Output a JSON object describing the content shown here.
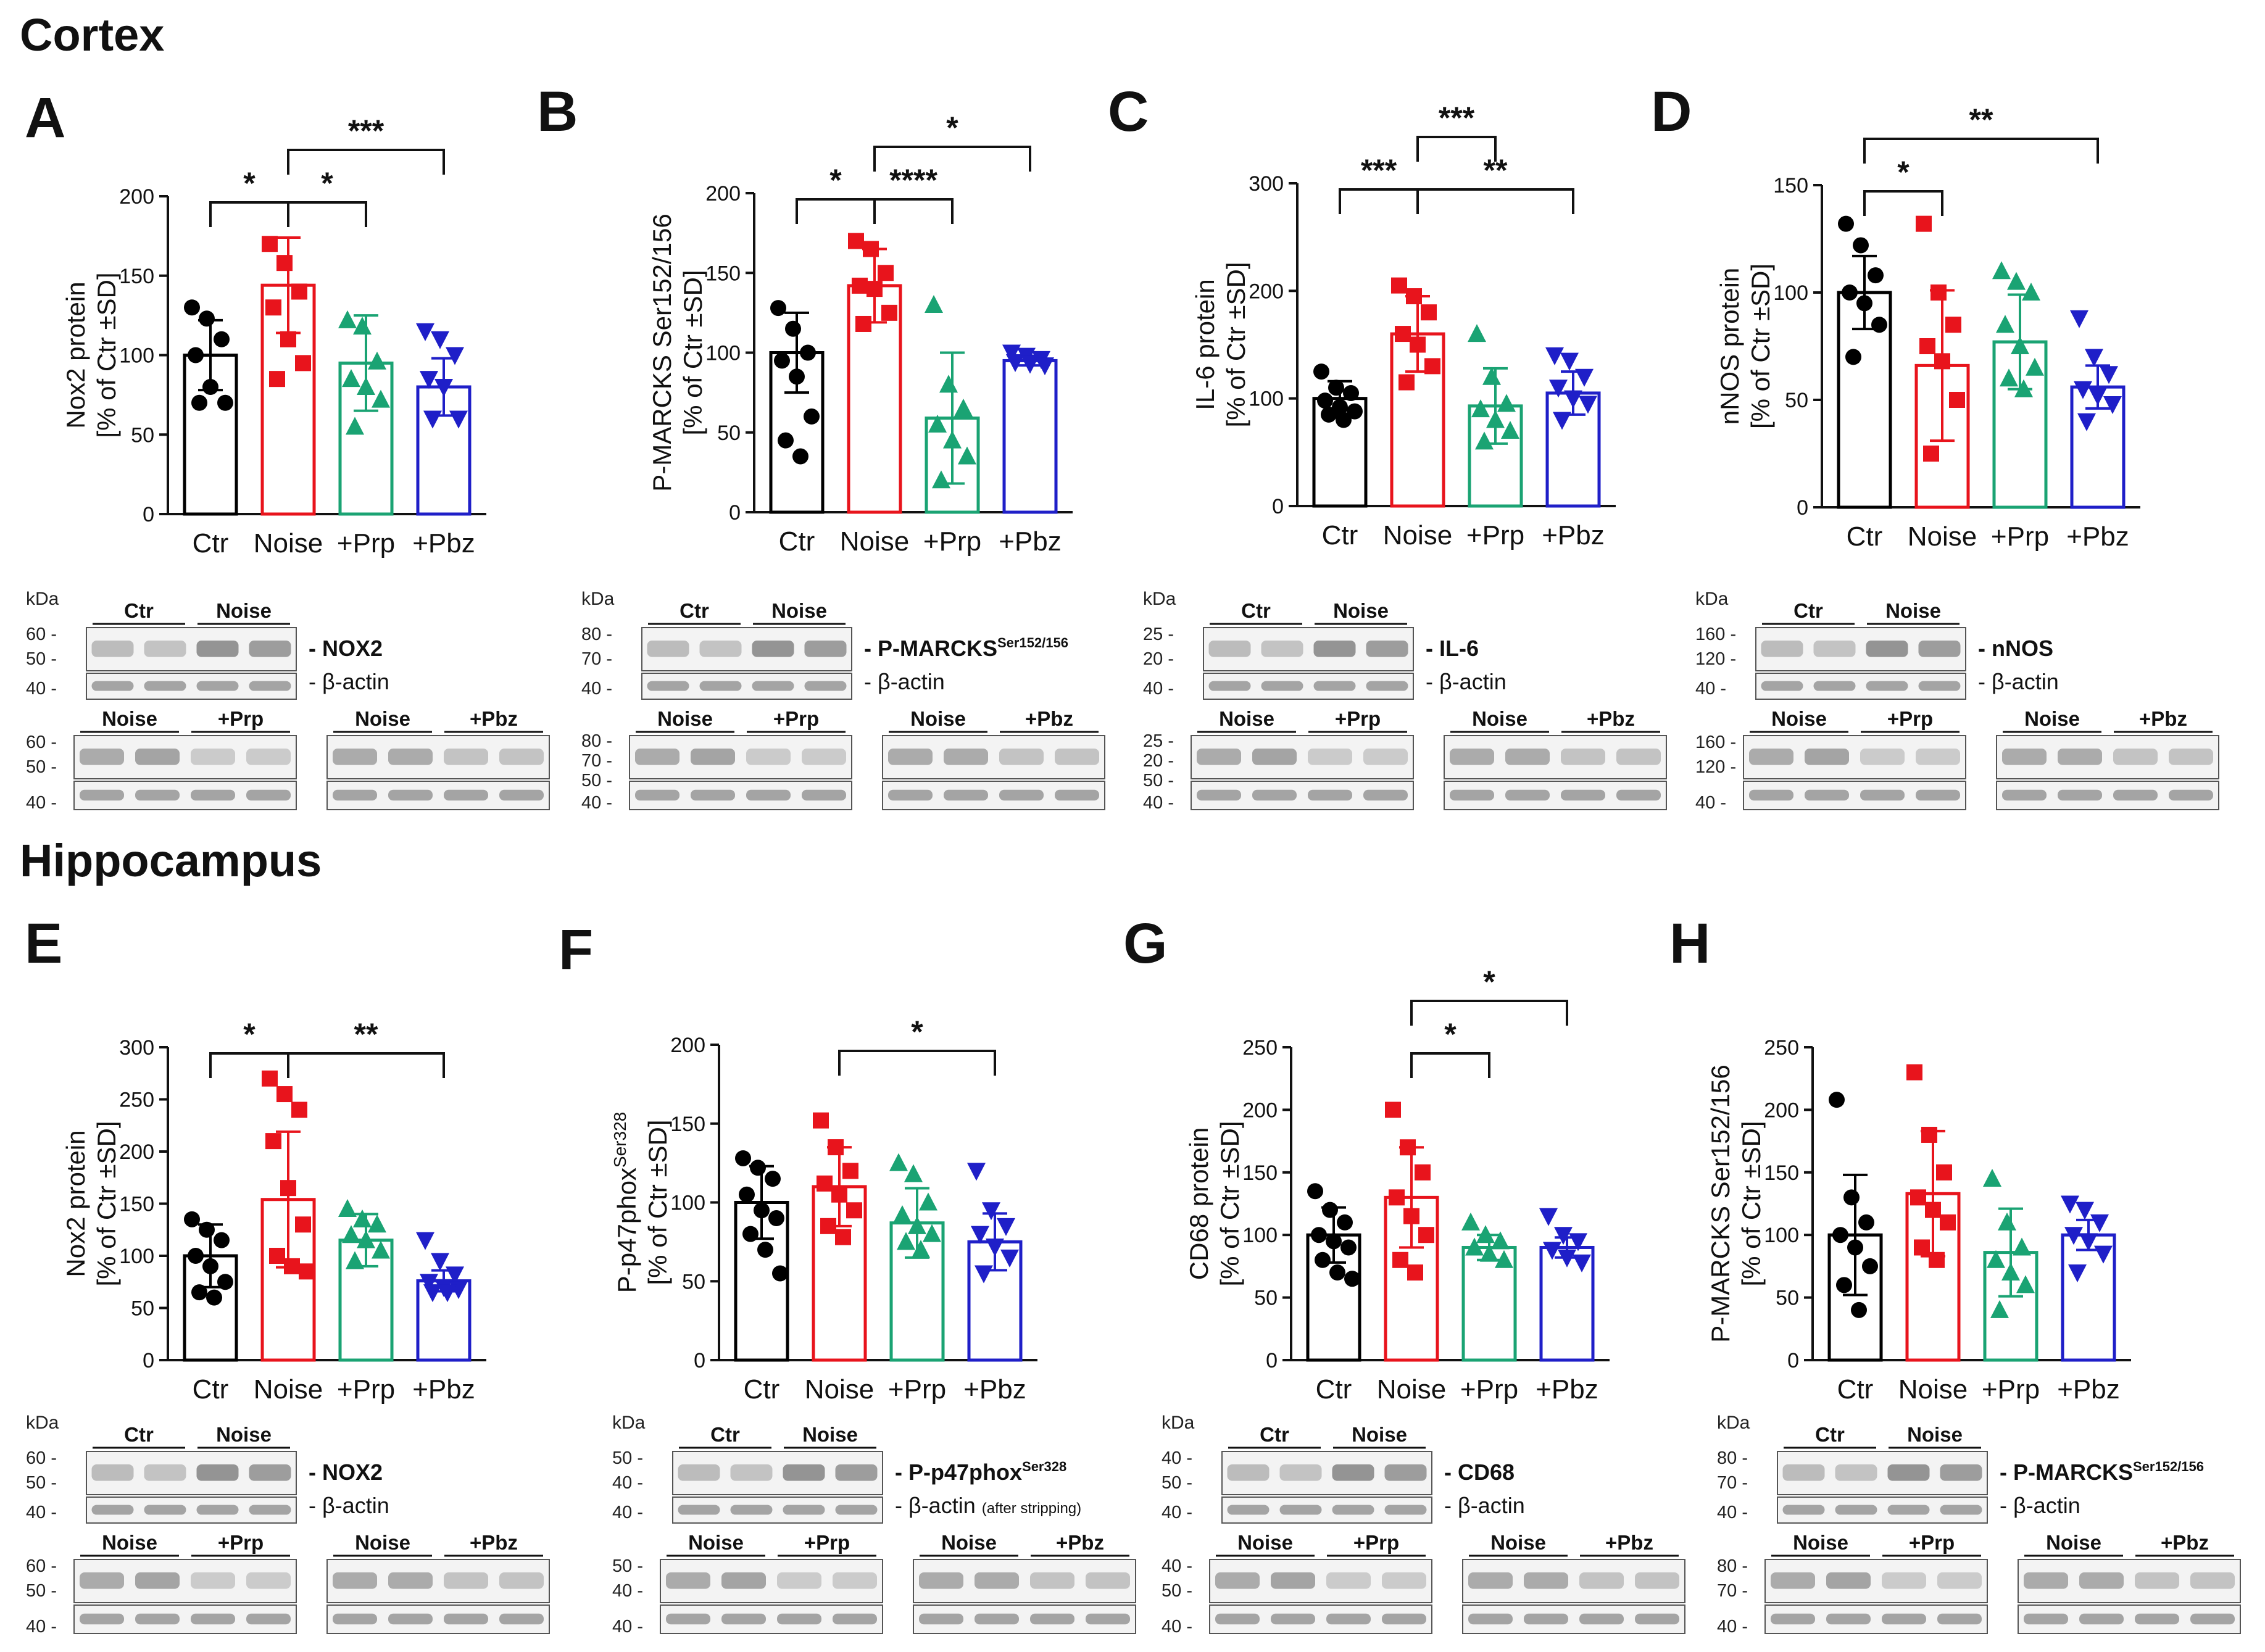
{
  "sections": {
    "top": "Cortex",
    "bottom": "Hippocampus"
  },
  "groups": [
    "Ctr",
    "Noise",
    "+Prp",
    "+Pbz"
  ],
  "colors": {
    "Ctr": "#000000",
    "Noise": "#e8141c",
    "+Prp": "#1aa373",
    "+Pbz": "#1f1fc8"
  },
  "markers": {
    "Ctr": "circle",
    "Noise": "square",
    "+Prp": "triangle-up",
    "+Pbz": "triangle-down"
  },
  "kda_label": "kDa",
  "actin_label": "- β-actin",
  "chart_data": [
    {
      "id": "A",
      "type": "bar",
      "section": "Cortex",
      "title": "A",
      "ylabel": [
        "Nox2 protein",
        "[% of Ctr ±SD]"
      ],
      "ylim": [
        0,
        200
      ],
      "yticks": [
        0,
        50,
        100,
        150,
        200
      ],
      "categories": [
        "Ctr",
        "Noise",
        "+Prp",
        "+Pbz"
      ],
      "values": [
        100,
        144,
        95,
        80
      ],
      "errors": [
        22,
        30,
        30,
        18
      ],
      "points": [
        [
          130,
          123,
          110,
          100,
          80,
          70,
          70
        ],
        [
          170,
          158,
          140,
          130,
          110,
          95,
          85
        ],
        [
          122,
          118,
          96,
          85,
          80,
          72,
          55
        ],
        [
          115,
          110,
          100,
          85,
          80,
          60,
          60
        ]
      ],
      "significance": [
        {
          "from": 0,
          "to": 1,
          "label": "*",
          "level": 0
        },
        {
          "from": 1,
          "to": 2,
          "label": "*",
          "level": 0
        },
        {
          "from": 1,
          "to": 3,
          "label": "***",
          "level": 1
        }
      ]
    },
    {
      "id": "B",
      "type": "bar",
      "section": "Cortex",
      "title": "B",
      "ylabel": [
        "P-MARCKS Ser152/156",
        "[% of Ctr ±SD]"
      ],
      "ylim": [
        0,
        200
      ],
      "yticks": [
        0,
        50,
        100,
        150,
        200
      ],
      "categories": [
        "Ctr",
        "Noise",
        "+Prp",
        "+Pbz"
      ],
      "values": [
        100,
        142,
        59,
        95
      ],
      "errors": [
        25,
        23,
        41,
        3
      ],
      "points": [
        [
          128,
          115,
          100,
          95,
          85,
          60,
          45,
          35
        ],
        [
          170,
          165,
          150,
          142,
          140,
          125,
          118
        ],
        [
          130,
          80,
          65,
          55,
          45,
          35,
          20
        ],
        [
          100,
          98,
          96,
          94,
          93,
          92
        ]
      ],
      "significance": [
        {
          "from": 0,
          "to": 1,
          "label": "*",
          "level": 0
        },
        {
          "from": 1,
          "to": 2,
          "label": "****",
          "level": 0
        },
        {
          "from": 1,
          "to": 3,
          "label": "*",
          "level": 1
        }
      ]
    },
    {
      "id": "C",
      "type": "bar",
      "section": "Cortex",
      "title": "C",
      "ylabel": [
        "IL-6 protein",
        "[% of Ctr ±SD]"
      ],
      "ylim": [
        0,
        300
      ],
      "yticks": [
        0,
        100,
        200,
        300
      ],
      "categories": [
        "Ctr",
        "Noise",
        "+Prp",
        "+Pbz"
      ],
      "values": [
        100,
        160,
        93,
        105
      ],
      "errors": [
        16,
        35,
        35,
        20
      ],
      "points": [
        [
          125,
          110,
          105,
          98,
          92,
          88,
          85,
          80
        ],
        [
          205,
          195,
          180,
          160,
          150,
          130,
          115
        ],
        [
          160,
          120,
          95,
          90,
          80,
          70,
          60
        ],
        [
          140,
          135,
          120,
          110,
          100,
          95,
          80
        ]
      ],
      "significance": [
        {
          "from": 0,
          "to": 1,
          "label": "***",
          "level": 0
        },
        {
          "from": 1,
          "to": 3,
          "label": "**",
          "level": 0
        },
        {
          "from": 1,
          "to": 2,
          "label": "***",
          "level": 1
        }
      ]
    },
    {
      "id": "D",
      "type": "bar",
      "section": "Cortex",
      "title": "D",
      "ylabel": [
        "nNOS protein",
        "[% of Ctr ±SD]"
      ],
      "ylim": [
        0,
        150
      ],
      "yticks": [
        0,
        50,
        100,
        150
      ],
      "categories": [
        "Ctr",
        "Noise",
        "+Prp",
        "+Pbz"
      ],
      "values": [
        100,
        66,
        77,
        56
      ],
      "errors": [
        17,
        35,
        22,
        10
      ],
      "points": [
        [
          132,
          122,
          108,
          100,
          95,
          85,
          70
        ],
        [
          132,
          100,
          85,
          75,
          68,
          50,
          25
        ],
        [
          110,
          105,
          100,
          85,
          75,
          65,
          60,
          55
        ],
        [
          88,
          70,
          62,
          55,
          52,
          48,
          40
        ]
      ],
      "significance": [
        {
          "from": 0,
          "to": 1,
          "label": "*",
          "level": 0
        },
        {
          "from": 0,
          "to": 3,
          "label": "**",
          "level": 1
        }
      ]
    },
    {
      "id": "E",
      "type": "bar",
      "section": "Hippocampus",
      "title": "E",
      "ylabel": [
        "Nox2 protein",
        "[% of Ctr ±SD]"
      ],
      "ylim": [
        0,
        300
      ],
      "yticks": [
        0,
        50,
        100,
        150,
        200,
        250,
        300
      ],
      "categories": [
        "Ctr",
        "Noise",
        "+Prp",
        "+Pbz"
      ],
      "values": [
        100,
        154,
        115,
        76
      ],
      "errors": [
        30,
        65,
        25,
        10
      ],
      "points": [
        [
          135,
          125,
          115,
          100,
          90,
          75,
          65,
          60
        ],
        [
          270,
          255,
          240,
          210,
          165,
          130,
          100,
          90,
          85
        ],
        [
          145,
          135,
          130,
          120,
          115,
          105,
          95
        ],
        [
          115,
          95,
          82,
          75,
          70,
          68,
          65,
          65
        ]
      ],
      "significance": [
        {
          "from": 0,
          "to": 1,
          "label": "*",
          "level": 0
        },
        {
          "from": 1,
          "to": 3,
          "label": "**",
          "level": 0
        }
      ]
    },
    {
      "id": "F",
      "type": "bar",
      "section": "Hippocampus",
      "title": "F",
      "ylabel": [
        "P-p47phox",
        "[% of Ctr ±SD]"
      ],
      "ylabel_sup": "Ser328",
      "ylim": [
        0,
        200
      ],
      "yticks": [
        0,
        50,
        100,
        150,
        200
      ],
      "categories": [
        "Ctr",
        "Noise",
        "+Prp",
        "+Pbz"
      ],
      "values": [
        100,
        110,
        87,
        75
      ],
      "errors": [
        23,
        25,
        22,
        18
      ],
      "points": [
        [
          128,
          122,
          115,
          105,
          95,
          90,
          80,
          70,
          55
        ],
        [
          152,
          135,
          120,
          112,
          105,
          95,
          85,
          78
        ],
        [
          125,
          118,
          100,
          92,
          85,
          80,
          75,
          70
        ],
        [
          120,
          95,
          85,
          80,
          72,
          65,
          55
        ]
      ],
      "significance": [
        {
          "from": 1,
          "to": 3,
          "label": "*",
          "level": 0
        }
      ]
    },
    {
      "id": "G",
      "type": "bar",
      "section": "Hippocampus",
      "title": "G",
      "ylabel": [
        "CD68 protein",
        "[% of Ctr ±SD]"
      ],
      "ylim": [
        0,
        250
      ],
      "yticks": [
        0,
        50,
        100,
        150,
        200,
        250
      ],
      "categories": [
        "Ctr",
        "Noise",
        "+Prp",
        "+Pbz"
      ],
      "values": [
        100,
        130,
        90,
        90
      ],
      "errors": [
        22,
        40,
        10,
        8
      ],
      "points": [
        [
          135,
          120,
          110,
          100,
          95,
          90,
          80,
          70,
          65
        ],
        [
          200,
          170,
          150,
          130,
          115,
          100,
          80,
          70
        ],
        [
          110,
          100,
          95,
          90,
          85,
          80
        ],
        [
          115,
          100,
          95,
          88,
          82,
          78
        ]
      ],
      "significance": [
        {
          "from": 1,
          "to": 2,
          "label": "*",
          "level": 0
        },
        {
          "from": 1,
          "to": 3,
          "label": "*",
          "level": 1
        }
      ]
    },
    {
      "id": "H",
      "type": "bar",
      "section": "Hippocampus",
      "title": "H",
      "ylabel": [
        "P-MARCKS Ser152/156",
        "[% of Ctr ±SD]"
      ],
      "ylim": [
        0,
        250
      ],
      "yticks": [
        0,
        50,
        100,
        150,
        200,
        250
      ],
      "categories": [
        "Ctr",
        "Noise",
        "+Prp",
        "+Pbz"
      ],
      "values": [
        100,
        133,
        86,
        100
      ],
      "errors": [
        48,
        50,
        35,
        12
      ],
      "points": [
        [
          208,
          130,
          110,
          100,
          90,
          75,
          60,
          40
        ],
        [
          230,
          180,
          150,
          130,
          120,
          110,
          90,
          80
        ],
        [
          145,
          110,
          90,
          80,
          70,
          60,
          40
        ],
        [
          125,
          120,
          110,
          100,
          95,
          85,
          70
        ]
      ],
      "significance": []
    }
  ],
  "blots": [
    {
      "id": "A",
      "protein": "- NOX2",
      "protein_sup": "",
      "top_mw": [
        "60 -",
        "50 -",
        "40 -"
      ],
      "bottom_mw": [
        "60 -",
        "50 -",
        "40 -"
      ],
      "top_lanes": [
        "Ctr",
        "Noise"
      ],
      "bottom_lanes": [
        "Noise",
        "+Prp",
        "Noise",
        "+Pbz"
      ],
      "note": ""
    },
    {
      "id": "B",
      "protein": "- P-MARCKS",
      "protein_sup": "Ser152/156",
      "top_mw": [
        "80 -",
        "70 -",
        "40 -"
      ],
      "bottom_mw": [
        "80 -",
        "70 -",
        "50 -",
        "40 -"
      ],
      "top_lanes": [
        "Ctr",
        "Noise"
      ],
      "bottom_lanes": [
        "Noise",
        "+Prp",
        "Noise",
        "+Pbz"
      ],
      "note": ""
    },
    {
      "id": "C",
      "protein": "- IL-6",
      "protein_sup": "",
      "top_mw": [
        "25 -",
        "20 -",
        "40 -"
      ],
      "bottom_mw": [
        "25 -",
        "20 -",
        "50 -",
        "40 -"
      ],
      "top_lanes": [
        "Ctr",
        "Noise"
      ],
      "bottom_lanes": [
        "Noise",
        "+Prp",
        "Noise",
        "+Pbz"
      ],
      "note": ""
    },
    {
      "id": "D",
      "protein": "- nNOS",
      "protein_sup": "",
      "top_mw": [
        "160 -",
        "120 -",
        "40 -"
      ],
      "bottom_mw": [
        "160 -",
        "120 -",
        "40 -"
      ],
      "top_lanes": [
        "Ctr",
        "Noise"
      ],
      "bottom_lanes": [
        "Noise",
        "+Prp",
        "Noise",
        "+Pbz"
      ],
      "note": ""
    },
    {
      "id": "E",
      "protein": "- NOX2",
      "protein_sup": "",
      "top_mw": [
        "60 -",
        "50 -",
        "40 -"
      ],
      "bottom_mw": [
        "60 -",
        "50 -",
        "40 -"
      ],
      "top_lanes": [
        "Ctr",
        "Noise"
      ],
      "bottom_lanes": [
        "Noise",
        "+Prp",
        "Noise",
        "+Pbz"
      ],
      "note": ""
    },
    {
      "id": "F",
      "protein": "- P-p47phox",
      "protein_sup": "Ser328",
      "top_mw": [
        "50 -",
        "40 -",
        "40 -"
      ],
      "bottom_mw": [
        "50 -",
        "40 -",
        "40 -"
      ],
      "top_lanes": [
        "Ctr",
        "Noise"
      ],
      "bottom_lanes": [
        "Noise",
        "+Prp",
        "Noise",
        "+Pbz"
      ],
      "note": "(after stripping)"
    },
    {
      "id": "G",
      "protein": "- CD68",
      "protein_sup": "",
      "top_mw": [
        "40 -",
        "50 -",
        "40 -"
      ],
      "bottom_mw": [
        "40 -",
        "50 -",
        "40 -"
      ],
      "top_lanes": [
        "Ctr",
        "Noise"
      ],
      "bottom_lanes": [
        "Noise",
        "+Prp",
        "Noise",
        "+Pbz"
      ],
      "note": ""
    },
    {
      "id": "H",
      "protein": "- P-MARCKS",
      "protein_sup": "Ser152/156",
      "top_mw": [
        "80 -",
        "70 -",
        "40 -"
      ],
      "bottom_mw": [
        "80 -",
        "70 -",
        "40 -"
      ],
      "top_lanes": [
        "Ctr",
        "Noise"
      ],
      "bottom_lanes": [
        "Noise",
        "+Prp",
        "Noise",
        "+Pbz"
      ],
      "note": ""
    }
  ]
}
